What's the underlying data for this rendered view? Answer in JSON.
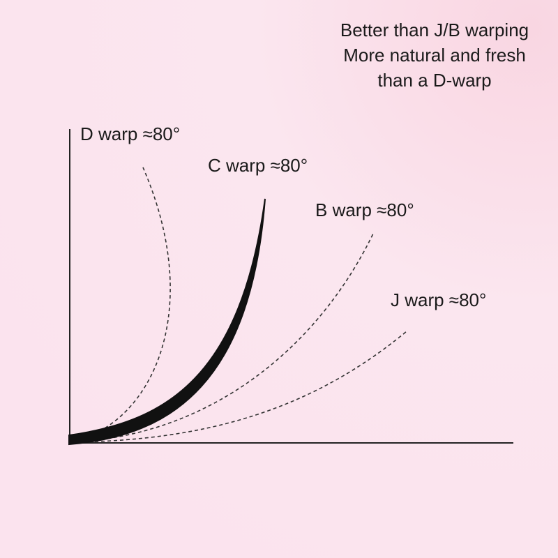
{
  "caption": {
    "lines": [
      "Better than J/B warping",
      "More natural and fresh",
      "than a D-warp"
    ]
  },
  "curves": [
    {
      "label": "D warp ≈80°"
    },
    {
      "label": "C warp ≈80°"
    },
    {
      "label": "B warp ≈80°"
    },
    {
      "label": "J warp ≈80°"
    }
  ]
}
